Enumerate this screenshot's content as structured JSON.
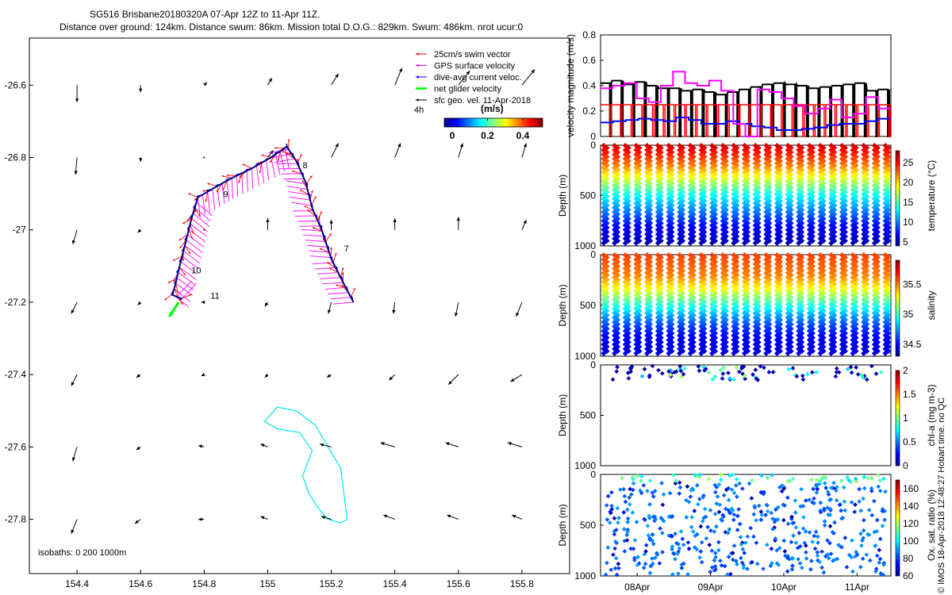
{
  "title": {
    "line1": "SG516 Brisbane20180320A 07-Apr 12Z to 11-Apr 11Z.",
    "line2": "Distance over ground: 124km. Distance swum: 86km. Mission total D.O.G.: 829km. Swum: 486km. nrot ucur:0"
  },
  "footer_credit": "© IMOS 18-Apr-2018 12:48:27 Hobart time. no QC",
  "colors": {
    "swim": "#ff0000",
    "gps": "#ff00ff",
    "dive_current": "#0000ff",
    "net_velocity": "#00ff00",
    "sfc_geo": "#000000",
    "isobath": "#00e5ee",
    "track": "#000000"
  },
  "chart_data": [
    {
      "type": "scatter",
      "name": "map",
      "xlim": [
        154.25,
        155.95
      ],
      "ylim": [
        -27.95,
        -26.47
      ],
      "x_ticks": [
        154.4,
        154.6,
        154.8,
        155.0,
        155.2,
        155.4,
        155.6,
        155.8
      ],
      "x_tick_labels": [
        "154.4",
        "154.6",
        "154.8",
        "155",
        "155.2",
        "155.4",
        "155.6",
        "155.8"
      ],
      "y_ticks": [
        -26.6,
        -26.8,
        -27.0,
        -27.2,
        -27.4,
        -27.6,
        -27.8
      ],
      "y_tick_labels": [
        "-26.6",
        "-26.8",
        "-27",
        "-27.2",
        "-27.4",
        "-27.6",
        "-27.8"
      ],
      "legend": {
        "placement": "top-right",
        "entries": [
          {
            "label": "25cm/s swim vector",
            "color": "#ff0000"
          },
          {
            "label": "GPS surface velocity",
            "color": "#ff00ff"
          },
          {
            "label": "dive-avg current veloc.",
            "color": "#0000ff"
          },
          {
            "label": "net glider velocity",
            "color": "#00ff00"
          },
          {
            "label": "sfc geo. vel. 11-Apr-2018",
            "color": "#000000"
          }
        ],
        "interval_label": "4h",
        "colorbar_title": "(m/s)",
        "colorbar_ticks": [
          "0",
          "0.2",
          "0.4"
        ]
      },
      "isobaths_label": "isobaths: 0   200   1000m",
      "track": {
        "lon": [
          155.27,
          155.24,
          155.2,
          155.17,
          155.14,
          155.12,
          155.09,
          155.06,
          155.01,
          154.95,
          154.88,
          154.82,
          154.78,
          154.76,
          154.74,
          154.72,
          154.71,
          154.7,
          154.73
        ],
        "lat": [
          -27.2,
          -27.15,
          -27.08,
          -27.0,
          -26.94,
          -26.87,
          -26.81,
          -26.77,
          -26.8,
          -26.83,
          -26.86,
          -26.89,
          -26.91,
          -26.97,
          -27.04,
          -27.11,
          -27.15,
          -27.18,
          -27.19
        ]
      },
      "day_labels": [
        {
          "text": "7",
          "lon": 155.24,
          "lat": -27.06
        },
        {
          "text": "8",
          "lon": 155.11,
          "lat": -26.83
        },
        {
          "text": "9",
          "lon": 154.86,
          "lat": -26.91
        },
        {
          "text": "10",
          "lon": 154.76,
          "lat": -27.12
        },
        {
          "text": "11",
          "lon": 154.82,
          "lat": -27.19
        }
      ],
      "net_velocity": {
        "lon": [
          154.72,
          154.69
        ],
        "lat": [
          -27.2,
          -27.24
        ]
      },
      "isobath_contour": {
        "lon": [
          155.0,
          155.03,
          155.09,
          155.15,
          155.19,
          155.23,
          155.24,
          155.25,
          155.23,
          155.19,
          155.16,
          155.13,
          155.11,
          155.14,
          155.1,
          155.03,
          154.99,
          155.0
        ],
        "lat": [
          -27.52,
          -27.49,
          -27.5,
          -27.54,
          -27.6,
          -27.66,
          -27.73,
          -27.8,
          -27.81,
          -27.8,
          -27.77,
          -27.73,
          -27.68,
          -27.61,
          -27.56,
          -27.55,
          -27.53,
          -27.52
        ]
      },
      "geo_vectors": {
        "lon": [
          154.4,
          154.6,
          154.8,
          155.0,
          155.2,
          155.4,
          155.6,
          155.8
        ],
        "lat": [
          -26.6,
          -26.8,
          -27.0,
          -27.2,
          -27.4,
          -27.6,
          -27.8
        ],
        "u": [
          [
            0.0,
            0.0,
            0.02,
            0.03,
            0.05,
            0.05,
            0.08,
            0.09
          ],
          [
            -0.01,
            0.0,
            0.01,
            0.04,
            0.05,
            0.04,
            0.03,
            0.03
          ],
          [
            -0.03,
            -0.02,
            0.0,
            0.0,
            0.0,
            0.0,
            0.0,
            0.03
          ],
          [
            -0.04,
            -0.02,
            -0.02,
            -0.02,
            -0.02,
            -0.01,
            -0.02,
            -0.04
          ],
          [
            -0.04,
            -0.03,
            -0.02,
            -0.02,
            -0.03,
            -0.04,
            -0.07,
            -0.08
          ],
          [
            -0.03,
            -0.03,
            -0.04,
            -0.05,
            -0.08,
            -0.1,
            -0.09,
            -0.1
          ],
          [
            -0.04,
            -0.04,
            -0.04,
            -0.05,
            -0.07,
            -0.08,
            -0.08,
            -0.07
          ]
        ],
        "v": [
          [
            -0.12,
            -0.05,
            0.02,
            0.05,
            0.08,
            0.12,
            0.1,
            0.11
          ],
          [
            -0.12,
            -0.03,
            0.0,
            0.05,
            0.1,
            0.1,
            0.1,
            0.1
          ],
          [
            -0.1,
            -0.02,
            0.0,
            0.08,
            0.07,
            0.08,
            0.09,
            0.07
          ],
          [
            -0.08,
            -0.02,
            0.0,
            -0.03,
            -0.08,
            -0.08,
            -0.1,
            -0.1
          ],
          [
            -0.08,
            -0.02,
            -0.01,
            -0.02,
            -0.02,
            -0.04,
            -0.07,
            -0.05
          ],
          [
            -0.1,
            -0.02,
            0.01,
            0.02,
            0.02,
            0.03,
            0.03,
            0.03
          ],
          [
            -0.1,
            -0.03,
            0.0,
            0.02,
            0.02,
            0.03,
            0.03,
            0.03
          ]
        ]
      }
    },
    {
      "type": "line",
      "name": "velocity-panel",
      "ylabel": "velocity magnitude (m/s)",
      "xlim": [
        0,
        4.6
      ],
      "ylim": [
        0,
        0.8
      ],
      "y_ticks": [
        "0",
        "0.2",
        "0.4",
        "0.6",
        "0.8"
      ],
      "series": [
        {
          "color": "#000000",
          "step_values": [
            0.42,
            0.44,
            0.41,
            0.43,
            0.4,
            0.38,
            0.38,
            0.36,
            0.37,
            0.35,
            0.33,
            0.35,
            0.37,
            0.39,
            0.41,
            0.42,
            0.41,
            0.4,
            0.38,
            0.39,
            0.4,
            0.41,
            0.42,
            0.36,
            0.37
          ]
        },
        {
          "color": "#ff0000",
          "step_values": [
            0.25
          ]
        },
        {
          "color": "#0000ff",
          "step_values": [
            0.11,
            0.12,
            0.13,
            0.14,
            0.13,
            0.12,
            0.15,
            0.13,
            0.1,
            0.1,
            0.12,
            0.1,
            0.08,
            0.07,
            0.05,
            0.05,
            0.06,
            0.07,
            0.09,
            0.1,
            0.1,
            0.12,
            0.14
          ]
        },
        {
          "color": "#ff00ff",
          "step_values": [
            0.38,
            0.4,
            0.42,
            0.3,
            0.27,
            0.4,
            0.51,
            0.42,
            0.4,
            0.44,
            0.36,
            0.1,
            0.0,
            0.37,
            0.35,
            0.3,
            0.24,
            0.18,
            0.22,
            0.29,
            0.15,
            0.18,
            0.31,
            0.22
          ]
        }
      ]
    },
    {
      "type": "scatter",
      "name": "temperature-panel",
      "ylabel": "Depth (m)",
      "y_ticks": [
        "0",
        "500",
        "1000"
      ],
      "ylim": [
        1000,
        0
      ],
      "colorbar_label": "temperature (°C)",
      "colorbar_ticks": [
        "5",
        "10",
        "15",
        "20",
        "25"
      ],
      "clim": [
        4,
        28
      ],
      "profile": {
        "depths": [
          0,
          100,
          200,
          300,
          400,
          500,
          600,
          700,
          800,
          900,
          1000
        ],
        "values": [
          26,
          24,
          22,
          19,
          16,
          13,
          11,
          9,
          7,
          6,
          5
        ]
      }
    },
    {
      "type": "scatter",
      "name": "salinity-panel",
      "ylabel": "Depth (m)",
      "y_ticks": [
        "0",
        "500",
        "1000"
      ],
      "ylim": [
        1000,
        0
      ],
      "colorbar_label": "salinity",
      "colorbar_ticks": [
        "34.5",
        "35",
        "35.5"
      ],
      "clim": [
        34.3,
        35.9
      ],
      "profile": {
        "depths": [
          0,
          100,
          200,
          300,
          400,
          500,
          600,
          700,
          800,
          900,
          1000
        ],
        "values": [
          35.6,
          35.55,
          35.5,
          35.35,
          35.15,
          34.95,
          34.75,
          34.6,
          34.5,
          34.45,
          34.45
        ]
      }
    },
    {
      "type": "scatter",
      "name": "chla-panel",
      "ylabel": "Depth (m)",
      "y_ticks": [
        "0",
        "500",
        "1000"
      ],
      "ylim": [
        1000,
        0
      ],
      "colorbar_label": "chl-a (mg m-3)",
      "colorbar_ticks": [
        "0",
        "0.5",
        "1",
        "1.5",
        "2"
      ],
      "clim": [
        0,
        2
      ],
      "depth_range": [
        0,
        150
      ]
    },
    {
      "type": "scatter",
      "name": "oxygen-panel",
      "ylabel": "Depth (m)",
      "y_ticks": [
        "0",
        "500",
        "1000"
      ],
      "ylim": [
        1000,
        0
      ],
      "colorbar_label": "Ox. sat. ratio (%)",
      "colorbar_ticks": [
        "60",
        "80",
        "100",
        "120",
        "140",
        "160"
      ],
      "clim": [
        60,
        170
      ],
      "x_tick_labels": [
        "08Apr",
        "09Apr",
        "10Apr",
        "11Apr"
      ],
      "x_ticks": [
        0.5,
        1.5,
        2.5,
        3.5
      ],
      "xlim": [
        0,
        3.95
      ]
    }
  ]
}
